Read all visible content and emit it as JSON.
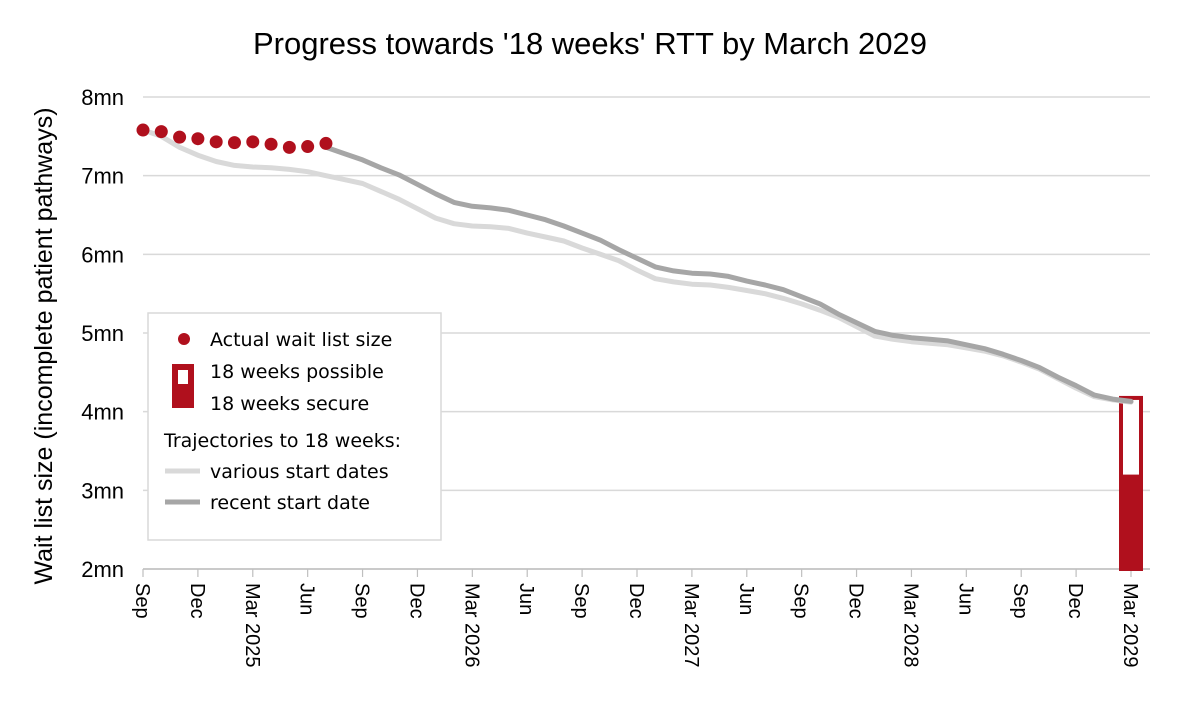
{
  "chart_data": {
    "type": "line",
    "title": "Progress towards '18 weeks' RTT by March 2029",
    "ylabel": "Wait list size (incomplete patient pathways)",
    "xlabel": "",
    "ylim": [
      2,
      8
    ],
    "yticks": [
      2,
      3,
      4,
      5,
      6,
      7,
      8
    ],
    "ytick_labels": [
      "2mn",
      "3mn",
      "4mn",
      "5mn",
      "6mn",
      "7mn",
      "8mn"
    ],
    "x_start": "2024-09",
    "x_end": "2029-03",
    "xticks": [
      {
        "x": "2024-09",
        "label": "Sep"
      },
      {
        "x": "2024-12",
        "label": "Dec"
      },
      {
        "x": "2025-03",
        "label": "Mar 2025"
      },
      {
        "x": "2025-06",
        "label": "Jun"
      },
      {
        "x": "2025-09",
        "label": "Sep"
      },
      {
        "x": "2025-12",
        "label": "Dec"
      },
      {
        "x": "2026-03",
        "label": "Mar 2026"
      },
      {
        "x": "2026-06",
        "label": "Jun"
      },
      {
        "x": "2026-09",
        "label": "Sep"
      },
      {
        "x": "2026-12",
        "label": "Dec"
      },
      {
        "x": "2027-03",
        "label": "Mar 2027"
      },
      {
        "x": "2027-06",
        "label": "Jun"
      },
      {
        "x": "2027-09",
        "label": "Sep"
      },
      {
        "x": "2027-12",
        "label": "Dec"
      },
      {
        "x": "2028-03",
        "label": "Mar 2028"
      },
      {
        "x": "2028-06",
        "label": "Jun"
      },
      {
        "x": "2028-09",
        "label": "Sep"
      },
      {
        "x": "2028-12",
        "label": "Dec"
      },
      {
        "x": "2029-03",
        "label": "Mar 2029"
      }
    ],
    "grid": true,
    "legend_position": "left",
    "legend_entries": [
      {
        "label": "Actual wait list size",
        "marker": "dot"
      },
      {
        "label": "18 weeks possible",
        "marker": "outline-bar"
      },
      {
        "label": "18 weeks secure",
        "marker": "filled-bar"
      },
      {
        "label": "Trajectories to 18 weeks:",
        "marker": "none"
      },
      {
        "label": "various start dates",
        "marker": "light-line"
      },
      {
        "label": "recent start date",
        "marker": "dark-line"
      }
    ],
    "series": [
      {
        "name": "Actual wait list size",
        "style": "points",
        "color": "#b0101d",
        "points": [
          {
            "x": "2024-09",
            "y": 7.58
          },
          {
            "x": "2024-10",
            "y": 7.56
          },
          {
            "x": "2024-11",
            "y": 7.49
          },
          {
            "x": "2024-12",
            "y": 7.47
          },
          {
            "x": "2025-01",
            "y": 7.43
          },
          {
            "x": "2025-02",
            "y": 7.42
          },
          {
            "x": "2025-03",
            "y": 7.43
          },
          {
            "x": "2025-04",
            "y": 7.4
          },
          {
            "x": "2025-05",
            "y": 7.36
          },
          {
            "x": "2025-06",
            "y": 7.37
          },
          {
            "x": "2025-07",
            "y": 7.41
          }
        ]
      },
      {
        "name": "various start dates",
        "style": "line",
        "color": "#d9d9d9",
        "points": [
          {
            "x": "2024-09",
            "y": 7.58
          },
          {
            "x": "2024-10",
            "y": 7.5
          },
          {
            "x": "2024-11",
            "y": 7.36
          },
          {
            "x": "2024-12",
            "y": 7.26
          },
          {
            "x": "2025-01",
            "y": 7.18
          },
          {
            "x": "2025-02",
            "y": 7.13
          },
          {
            "x": "2025-03",
            "y": 7.11
          },
          {
            "x": "2025-04",
            "y": 7.1
          },
          {
            "x": "2025-05",
            "y": 7.08
          },
          {
            "x": "2025-06",
            "y": 7.05
          },
          {
            "x": "2025-07",
            "y": 7.0
          },
          {
            "x": "2025-08",
            "y": 6.95
          },
          {
            "x": "2025-09",
            "y": 6.9
          },
          {
            "x": "2025-10",
            "y": 6.8
          },
          {
            "x": "2025-11",
            "y": 6.7
          },
          {
            "x": "2025-12",
            "y": 6.58
          },
          {
            "x": "2026-01",
            "y": 6.46
          },
          {
            "x": "2026-02",
            "y": 6.39
          },
          {
            "x": "2026-03",
            "y": 6.36
          },
          {
            "x": "2026-04",
            "y": 6.35
          },
          {
            "x": "2026-05",
            "y": 6.33
          },
          {
            "x": "2026-06",
            "y": 6.27
          },
          {
            "x": "2026-07",
            "y": 6.22
          },
          {
            "x": "2026-08",
            "y": 6.17
          },
          {
            "x": "2026-09",
            "y": 6.08
          },
          {
            "x": "2026-10",
            "y": 6.0
          },
          {
            "x": "2026-11",
            "y": 5.92
          },
          {
            "x": "2026-12",
            "y": 5.8
          },
          {
            "x": "2027-01",
            "y": 5.69
          },
          {
            "x": "2027-02",
            "y": 5.65
          },
          {
            "x": "2027-03",
            "y": 5.62
          },
          {
            "x": "2027-04",
            "y": 5.61
          },
          {
            "x": "2027-05",
            "y": 5.58
          },
          {
            "x": "2027-06",
            "y": 5.54
          },
          {
            "x": "2027-07",
            "y": 5.5
          },
          {
            "x": "2027-08",
            "y": 5.44
          },
          {
            "x": "2027-09",
            "y": 5.37
          },
          {
            "x": "2027-10",
            "y": 5.29
          },
          {
            "x": "2027-11",
            "y": 5.2
          },
          {
            "x": "2027-12",
            "y": 5.08
          },
          {
            "x": "2028-01",
            "y": 4.96
          },
          {
            "x": "2028-02",
            "y": 4.92
          },
          {
            "x": "2028-03",
            "y": 4.89
          },
          {
            "x": "2028-04",
            "y": 4.87
          },
          {
            "x": "2028-05",
            "y": 4.85
          },
          {
            "x": "2028-06",
            "y": 4.81
          },
          {
            "x": "2028-07",
            "y": 4.77
          },
          {
            "x": "2028-08",
            "y": 4.71
          },
          {
            "x": "2028-09",
            "y": 4.63
          },
          {
            "x": "2028-10",
            "y": 4.54
          },
          {
            "x": "2028-11",
            "y": 4.42
          },
          {
            "x": "2028-12",
            "y": 4.3
          },
          {
            "x": "2029-01",
            "y": 4.19
          },
          {
            "x": "2029-02",
            "y": 4.15
          },
          {
            "x": "2029-03",
            "y": 4.12
          }
        ]
      },
      {
        "name": "recent start date",
        "style": "line",
        "color": "#a6a6a6",
        "points": [
          {
            "x": "2025-07",
            "y": 7.36
          },
          {
            "x": "2025-08",
            "y": 7.28
          },
          {
            "x": "2025-09",
            "y": 7.2
          },
          {
            "x": "2025-10",
            "y": 7.1
          },
          {
            "x": "2025-11",
            "y": 7.01
          },
          {
            "x": "2025-12",
            "y": 6.89
          },
          {
            "x": "2026-01",
            "y": 6.77
          },
          {
            "x": "2026-02",
            "y": 6.66
          },
          {
            "x": "2026-03",
            "y": 6.61
          },
          {
            "x": "2026-04",
            "y": 6.59
          },
          {
            "x": "2026-05",
            "y": 6.56
          },
          {
            "x": "2026-06",
            "y": 6.5
          },
          {
            "x": "2026-07",
            "y": 6.44
          },
          {
            "x": "2026-08",
            "y": 6.36
          },
          {
            "x": "2026-09",
            "y": 6.27
          },
          {
            "x": "2026-10",
            "y": 6.18
          },
          {
            "x": "2026-11",
            "y": 6.06
          },
          {
            "x": "2026-12",
            "y": 5.95
          },
          {
            "x": "2027-01",
            "y": 5.84
          },
          {
            "x": "2027-02",
            "y": 5.79
          },
          {
            "x": "2027-03",
            "y": 5.76
          },
          {
            "x": "2027-04",
            "y": 5.75
          },
          {
            "x": "2027-05",
            "y": 5.72
          },
          {
            "x": "2027-06",
            "y": 5.66
          },
          {
            "x": "2027-07",
            "y": 5.61
          },
          {
            "x": "2027-08",
            "y": 5.55
          },
          {
            "x": "2027-09",
            "y": 5.46
          },
          {
            "x": "2027-10",
            "y": 5.37
          },
          {
            "x": "2027-11",
            "y": 5.24
          },
          {
            "x": "2027-12",
            "y": 5.13
          },
          {
            "x": "2028-01",
            "y": 5.02
          },
          {
            "x": "2028-02",
            "y": 4.97
          },
          {
            "x": "2028-03",
            "y": 4.94
          },
          {
            "x": "2028-04",
            "y": 4.92
          },
          {
            "x": "2028-05",
            "y": 4.9
          },
          {
            "x": "2028-06",
            "y": 4.85
          },
          {
            "x": "2028-07",
            "y": 4.8
          },
          {
            "x": "2028-08",
            "y": 4.73
          },
          {
            "x": "2028-09",
            "y": 4.65
          },
          {
            "x": "2028-10",
            "y": 4.56
          },
          {
            "x": "2028-11",
            "y": 4.44
          },
          {
            "x": "2028-12",
            "y": 4.33
          },
          {
            "x": "2029-01",
            "y": 4.21
          },
          {
            "x": "2029-02",
            "y": 4.16
          },
          {
            "x": "2029-03",
            "y": 4.13
          }
        ]
      }
    ],
    "bars": [
      {
        "name": "18 weeks possible",
        "x": "2029-03",
        "y0": 2,
        "y1": 4.2,
        "style": "outline",
        "color": "#b0101d"
      },
      {
        "name": "18 weeks secure",
        "x": "2029-03",
        "y0": 2,
        "y1": 3.2,
        "style": "filled",
        "color": "#b0101d"
      }
    ]
  }
}
